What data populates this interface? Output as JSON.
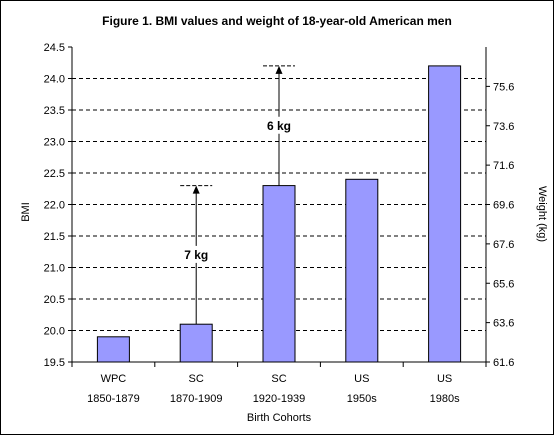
{
  "chart_data": {
    "type": "bar",
    "title": "Figure 1. BMI values and weight of 18-year-old American men",
    "xlabel": "Birth Cohorts",
    "ylabel": "BMI",
    "y2label": "Weight (kg)",
    "categories": [
      {
        "group": "WPC",
        "period": "1850-1879"
      },
      {
        "group": "SC",
        "period": "1870-1909"
      },
      {
        "group": "SC",
        "period": "1920-1939"
      },
      {
        "group": "US",
        "period": "1950s"
      },
      {
        "group": "US",
        "period": "1980s"
      }
    ],
    "values": [
      19.9,
      20.1,
      22.3,
      22.4,
      24.2
    ],
    "ylim": [
      19.5,
      24.5
    ],
    "yticks": [
      "19.5",
      "20.0",
      "20.5",
      "21.0",
      "21.5",
      "22.0",
      "22.5",
      "23.0",
      "23.5",
      "24.0",
      "24.5"
    ],
    "y2lim": [
      61.6,
      77.6
    ],
    "y2ticks": [
      "61.6",
      "63.6",
      "65.6",
      "67.6",
      "69.6",
      "71.6",
      "73.6",
      "75.6"
    ],
    "grid": "horizontal dashed",
    "bar_color": "#9999ff",
    "annotations": [
      {
        "label": "7 kg",
        "category_index": 1,
        "from": 20.1,
        "to": 22.3
      },
      {
        "label": "6 kg",
        "category_index": 2,
        "from": 22.3,
        "to": 24.2
      }
    ]
  }
}
